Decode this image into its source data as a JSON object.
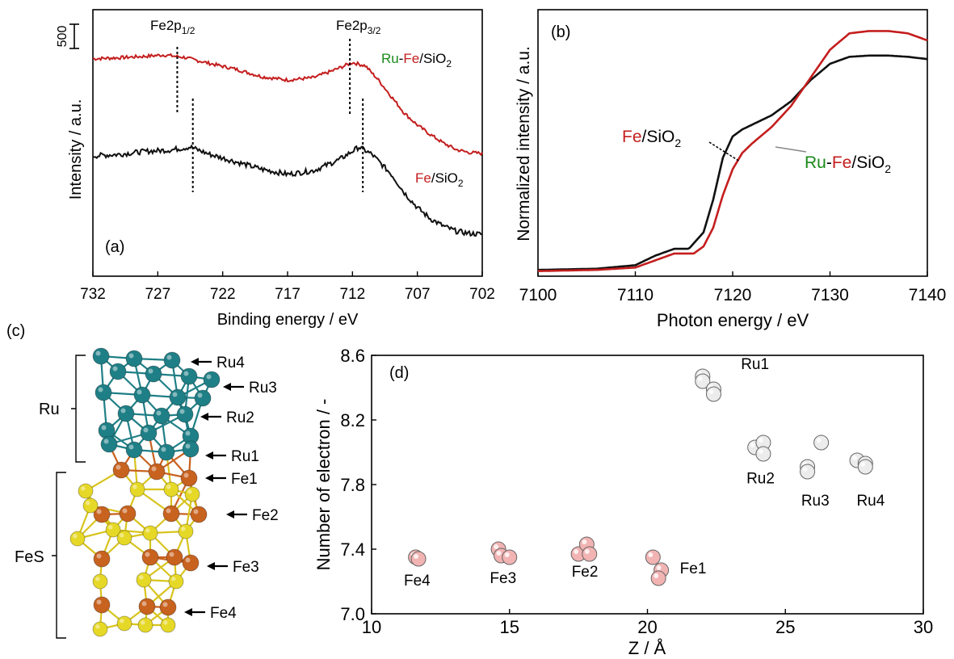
{
  "panels": {
    "a": "(a)",
    "b": "(b)",
    "c": "(c)",
    "d": "(d)"
  },
  "colors": {
    "red": "#c41e1e",
    "black": "#111111",
    "green": "#1a8a1a",
    "teal": "#1f7f86",
    "orange": "#c8621f",
    "yellow": "#e6d826",
    "pink": "#f2b3b3"
  },
  "chart_data": [
    {
      "id": "a",
      "type": "line",
      "xlabel": "Binding energy / eV",
      "ylabel": "Intensity / a.u.",
      "xlim": [
        732,
        702
      ],
      "xticks": [
        "732",
        "727",
        "722",
        "717",
        "712",
        "707",
        "702"
      ],
      "scale_bar_label": "500",
      "peak_labels": [
        "Fe2p",
        "1/2",
        "Fe2p",
        "3/2"
      ],
      "series": [
        {
          "name_parts": [
            "Ru",
            "-",
            "Fe",
            "/SiO",
            "2"
          ],
          "color": "#c41e1e",
          "x": [
            732,
            730,
            728,
            726.5,
            725,
            723,
            721,
            719,
            717,
            715,
            713.5,
            712,
            711,
            710,
            709,
            708,
            707,
            706,
            705,
            704,
            703,
            702
          ],
          "y": [
            1.0,
            1.02,
            1.05,
            1.08,
            1.03,
            0.9,
            0.78,
            0.62,
            0.55,
            0.6,
            0.75,
            0.92,
            0.85,
            0.55,
            0.2,
            -0.15,
            -0.4,
            -0.6,
            -0.78,
            -0.92,
            -0.98,
            -1.0
          ],
          "peaks": [
            725.5,
            712.2
          ]
        },
        {
          "name_parts": [
            "Fe",
            "/SiO",
            "2"
          ],
          "color": "#111111",
          "x": [
            732,
            730,
            728,
            726,
            724.5,
            723,
            721,
            719,
            717,
            715,
            713,
            711.5,
            710.5,
            709,
            708,
            707,
            706,
            705,
            704,
            703,
            702
          ],
          "y": [
            0.6,
            0.62,
            0.66,
            0.68,
            0.72,
            0.62,
            0.52,
            0.42,
            0.35,
            0.4,
            0.55,
            0.72,
            0.62,
            0.35,
            0.1,
            -0.1,
            -0.25,
            -0.35,
            -0.42,
            -0.45,
            -0.46
          ],
          "peaks": [
            724.3,
            711.2
          ]
        }
      ]
    },
    {
      "id": "b",
      "type": "line",
      "xlabel": "Photon energy / eV",
      "ylabel": "Normalized intensity / a.u.",
      "xlim": [
        7100,
        7140
      ],
      "xticks": [
        "7100",
        "7110",
        "7120",
        "7130",
        "7140"
      ],
      "series": [
        {
          "name_parts": [
            "Fe",
            "/SiO",
            "2"
          ],
          "color": "#111111",
          "x": [
            7100,
            7106,
            7110,
            7112,
            7114,
            7115.5,
            7117,
            7118,
            7119,
            7120,
            7121,
            7122,
            7124,
            7126,
            7128,
            7130,
            7132,
            7134,
            7136,
            7138,
            7140
          ],
          "y": [
            0.02,
            0.025,
            0.04,
            0.08,
            0.11,
            0.11,
            0.18,
            0.32,
            0.5,
            0.59,
            0.62,
            0.64,
            0.68,
            0.74,
            0.83,
            0.9,
            0.93,
            0.935,
            0.935,
            0.93,
            0.92
          ]
        },
        {
          "name_parts": [
            "Ru",
            "-",
            "Fe",
            "/SiO",
            "2"
          ],
          "color": "#c41e1e",
          "x": [
            7100,
            7106,
            7110,
            7112,
            7114,
            7116,
            7117,
            7118,
            7119,
            7120,
            7121,
            7122,
            7124,
            7126,
            7128,
            7130,
            7132,
            7134,
            7136,
            7138,
            7140
          ],
          "y": [
            0.015,
            0.02,
            0.03,
            0.06,
            0.09,
            0.09,
            0.12,
            0.2,
            0.34,
            0.45,
            0.52,
            0.56,
            0.63,
            0.72,
            0.84,
            0.96,
            1.03,
            1.04,
            1.04,
            1.03,
            1.0
          ]
        }
      ]
    },
    {
      "id": "d",
      "type": "scatter",
      "xlabel": "Z  / Å",
      "ylabel": "Number of electron / -",
      "xlim": [
        10,
        30
      ],
      "ylim": [
        7.0,
        8.6
      ],
      "xticks": [
        "10",
        "15",
        "20",
        "25",
        "30"
      ],
      "yticks": [
        "7.0",
        "7.4",
        "7.8",
        "8.2",
        "8.6"
      ],
      "groups": [
        {
          "label": "Fe4",
          "color": "#f2b3b3",
          "points": [
            [
              11.6,
              7.35
            ],
            [
              11.7,
              7.34
            ]
          ]
        },
        {
          "label": "Fe3",
          "color": "#f2b3b3",
          "points": [
            [
              14.6,
              7.4
            ],
            [
              14.7,
              7.36
            ],
            [
              15.0,
              7.35
            ]
          ]
        },
        {
          "label": "Fe2",
          "color": "#f2b3b3",
          "points": [
            [
              17.5,
              7.37
            ],
            [
              17.8,
              7.43
            ],
            [
              17.9,
              7.37
            ]
          ]
        },
        {
          "label": "Fe1",
          "color": "#f2b3b3",
          "points": [
            [
              20.2,
              7.35
            ],
            [
              20.5,
              7.27
            ],
            [
              20.4,
              7.22
            ]
          ]
        },
        {
          "label": "Ru1",
          "color": "#ececec",
          "points": [
            [
              22.0,
              8.47
            ],
            [
              22.0,
              8.44
            ],
            [
              22.4,
              8.39
            ],
            [
              22.4,
              8.36
            ]
          ]
        },
        {
          "label": "Ru2",
          "color": "#ececec",
          "points": [
            [
              23.9,
              8.03
            ],
            [
              24.2,
              8.06
            ],
            [
              24.2,
              7.99
            ]
          ]
        },
        {
          "label": "Ru3",
          "color": "#ececec",
          "points": [
            [
              25.8,
              7.91
            ],
            [
              25.8,
              7.88
            ],
            [
              26.3,
              8.06
            ]
          ]
        },
        {
          "label": "Ru4",
          "color": "#ececec",
          "points": [
            [
              27.6,
              7.95
            ],
            [
              27.9,
              7.93
            ],
            [
              27.9,
              7.91
            ]
          ]
        }
      ]
    }
  ],
  "structure": {
    "group_labels": [
      "Ru",
      "FeS"
    ],
    "layer_labels": [
      "Ru4",
      "Ru3",
      "Ru2",
      "Ru1",
      "Fe1",
      "Fe2",
      "Fe3",
      "Fe4"
    ]
  }
}
